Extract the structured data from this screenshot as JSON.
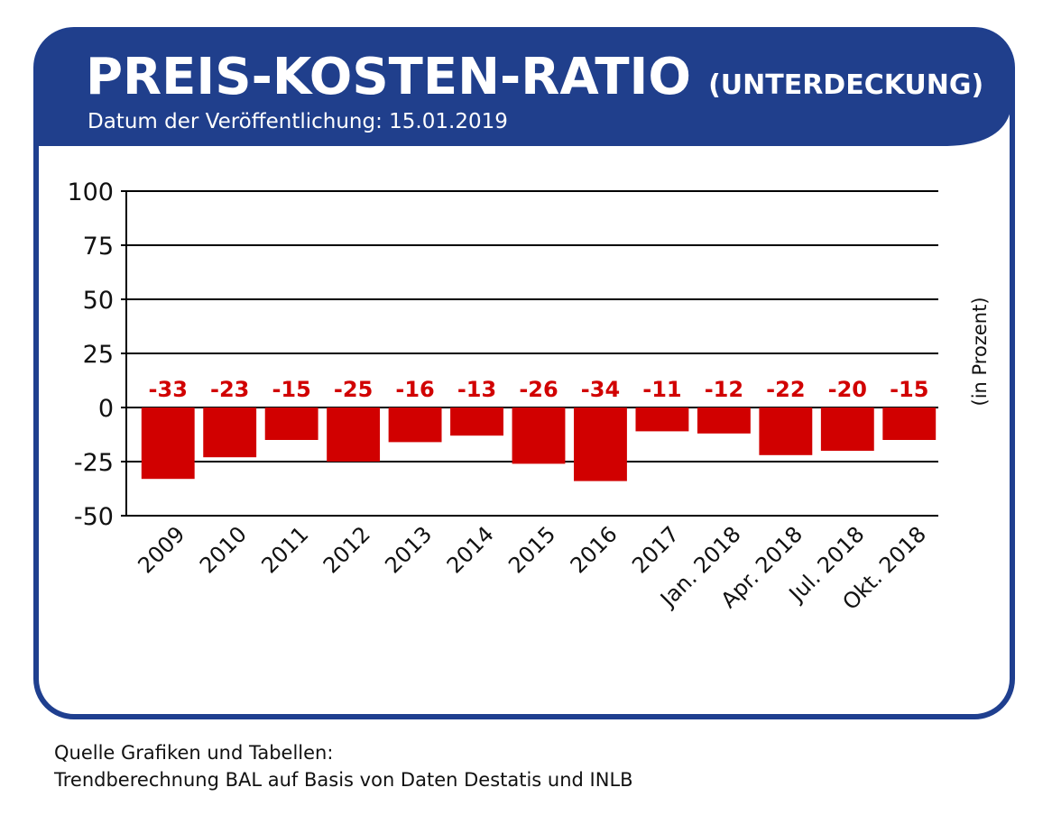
{
  "header": {
    "title": "PREIS-KOSTEN-RATIO",
    "title_suffix": "(UNTERDECKUNG)",
    "date_line": "Datum der Veröffentlichung: 15.01.2019"
  },
  "colors": {
    "frame": "#1f3f8f",
    "header_bg": "#203f8c",
    "bar": "#d10000",
    "label": "#d10000",
    "grid": "#000000"
  },
  "chart_data": {
    "type": "bar",
    "categories": [
      "2009",
      "2010",
      "2011",
      "2012",
      "2013",
      "2014",
      "2015",
      "2016",
      "2017",
      "Jan. 2018",
      "Apr. 2018",
      "Jul. 2018",
      "Okt. 2018"
    ],
    "values": [
      -33,
      -23,
      -15,
      -25,
      -16,
      -13,
      -26,
      -34,
      -11,
      -12,
      -22,
      -20,
      -15
    ],
    "data_labels": [
      "-33",
      "-23",
      "-15",
      "-25",
      "-16",
      "-13",
      "-26",
      "-34",
      "-11",
      "-12",
      "-22",
      "-20",
      "-15"
    ],
    "y_ticks": [
      "100",
      "75",
      "50",
      "25",
      "0",
      "-25",
      "-50"
    ],
    "y_tick_values": [
      100,
      75,
      50,
      25,
      0,
      -25,
      -50
    ],
    "ylim": [
      -50,
      100
    ],
    "ylabel": "(in Prozent)",
    "grid": true
  },
  "footer": {
    "source_line1": "Quelle Grafiken und Tabellen:",
    "source_line2": "Trendberechnung BAL auf Basis von Daten Destatis und INLB"
  }
}
